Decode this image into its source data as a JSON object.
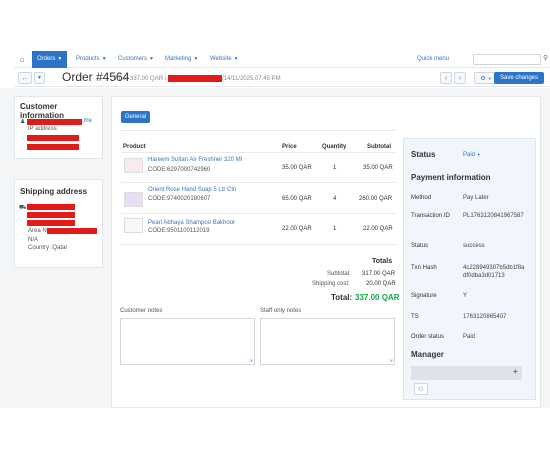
{
  "nav": {
    "items": [
      {
        "label": "Orders",
        "active": true
      },
      {
        "label": "Products"
      },
      {
        "label": "Customers"
      },
      {
        "label": "Marketing"
      },
      {
        "label": "Website"
      }
    ],
    "quick_menu": "Quick menu",
    "search_placeholder": ""
  },
  "toolbar": {
    "title": "Order #4564",
    "total_text": "Total: 337.00 QAR /",
    "date_text": "/14/11/2025,07:45 PM",
    "save_label": "Save changes"
  },
  "customer": {
    "title": "Customer information",
    "email_suffix": ".me",
    "ip_label": "IP address:"
  },
  "shipping": {
    "title": "Shipping address",
    "area_label": "Area N",
    "line_na": "N/A",
    "country": "Country :Qatar"
  },
  "tabs": {
    "general": "General"
  },
  "products": {
    "headers": {
      "product": "Product",
      "price": "Price",
      "quantity": "Quantity",
      "subtotal": "Subtotal"
    },
    "rows": [
      {
        "name": "Hareem Sultan Air Freshner 320 Ml",
        "code": "CODE:6297000742960",
        "price": "35.00 QAR",
        "qty": "1",
        "subtotal": "35.00 QAR"
      },
      {
        "name": "Orient Rose Hand Soap 5 Ltr Ctn",
        "code": "CODE:9740020180607",
        "price": "65.00 QAR",
        "qty": "4",
        "subtotal": "260.00 QAR"
      },
      {
        "name": "Pearl Abhaya Shampoo Bakhoor",
        "code": "CODE:9501100112019",
        "price": "22.00 QAR",
        "qty": "1",
        "subtotal": "22.00 QAR"
      }
    ]
  },
  "totals": {
    "title": "Totals",
    "subtotal_label": "Subtotal:",
    "subtotal_value": "317.00 QAR",
    "shipping_label": "Shipping cost:",
    "shipping_value": "20.00 QAR",
    "total_label": "Total:",
    "total_value": "337.00 QAR"
  },
  "notes": {
    "customer_label": "Customer notes",
    "staff_label": "Staff only notes"
  },
  "sidebar": {
    "status_label": "Status",
    "status_value": "Paid",
    "payment_title": "Payment information",
    "method_label": "Method",
    "method_value": "Pay Later",
    "txn_label": "Transaction ID",
    "txn_value": "PL1763120841967587",
    "status2_label": "Status",
    "status2_value": "success",
    "hash_label": "Txn Hash",
    "hash_value_1": "4c228949307b5db1f8a",
    "hash_value_2": "df0dba3d01713",
    "signature_label": "Signature",
    "signature_value": "Y",
    "ts_label": "TS",
    "ts_value": "1763120865407",
    "order_status_label": "Order status",
    "order_status_value": "Paid",
    "manager_title": "Manager"
  },
  "colors": {
    "accent": "#2b74c6",
    "total_green": "#16a34a",
    "redaction": "#e11a1a"
  }
}
